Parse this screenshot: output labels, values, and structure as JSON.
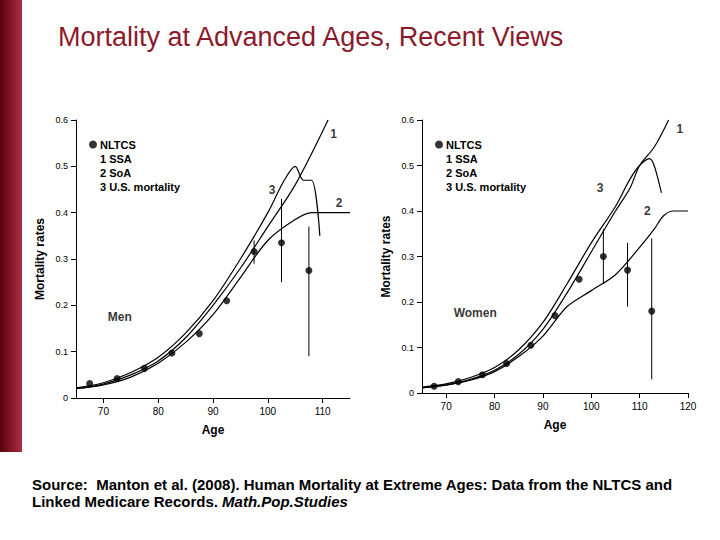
{
  "slide": {
    "title": "Mortality at Advanced Ages, Recent Views",
    "source": {
      "prefix": "Source:",
      "text": "Manton et al. (2008). Human Mortality at Extreme Ages: Data from the NLTCS and Linked Medicare Records.",
      "journal": "Math.Pop.Studies"
    }
  },
  "chart_data": [
    {
      "type": "line",
      "xlabel": "Age",
      "ylabel": "Mortality rates",
      "xlim": [
        65,
        115
      ],
      "xticks": [
        70,
        80,
        90,
        100,
        110
      ],
      "ylim": [
        0,
        0.6
      ],
      "yticks": [
        0,
        0.1,
        0.2,
        0.3,
        0.4,
        0.5,
        0.6
      ],
      "grid": false,
      "legend": "upper left",
      "series": [
        {
          "name": "NLTCS",
          "type": "scatter",
          "marker": "circle",
          "color": "#000000",
          "x": [
            67.5,
            72.5,
            77.5,
            82.5,
            87.5,
            92.5,
            97.5,
            102.5,
            107.5
          ],
          "values": [
            0.031,
            0.042,
            0.064,
            0.097,
            0.139,
            0.21,
            0.316,
            0.335,
            0.275
          ],
          "errors": [
            null,
            null,
            null,
            null,
            null,
            null,
            [
              0.29,
              0.34
            ],
            [
              0.25,
              0.43
            ],
            [
              0.09,
              0.37
            ]
          ]
        },
        {
          "name": "1 SSA",
          "type": "line",
          "color": "#000000",
          "x": [
            65,
            70,
            75,
            80,
            85,
            90,
            95,
            100,
            105,
            111
          ],
          "values": [
            0.02,
            0.03,
            0.05,
            0.08,
            0.13,
            0.2,
            0.28,
            0.37,
            0.46,
            0.6
          ]
        },
        {
          "name": "2 SoA",
          "type": "line",
          "color": "#000000",
          "x": [
            65,
            70,
            75,
            80,
            85,
            90,
            95,
            100,
            105,
            108,
            110,
            115
          ],
          "values": [
            0.02,
            0.028,
            0.045,
            0.075,
            0.12,
            0.18,
            0.26,
            0.34,
            0.385,
            0.4,
            0.4,
            0.4
          ]
        },
        {
          "name": "3 U.S. mortality",
          "type": "line",
          "color": "#000000",
          "x": [
            65,
            70,
            75,
            80,
            85,
            90,
            95,
            100,
            103,
            105,
            106.5,
            108,
            109.5
          ],
          "values": [
            0.022,
            0.033,
            0.055,
            0.088,
            0.14,
            0.21,
            0.3,
            0.4,
            0.47,
            0.5,
            0.47,
            0.47,
            0.35
          ]
        }
      ],
      "annotations": [
        {
          "text": "1",
          "x": 112,
          "y": 0.57
        },
        {
          "text": "2",
          "x": 113,
          "y": 0.42
        },
        {
          "text": "3",
          "x": 100.8,
          "y": 0.45
        },
        {
          "text": "Men",
          "x": 73,
          "y": 0.175
        }
      ]
    },
    {
      "type": "line",
      "xlabel": "Age",
      "ylabel": "Mortality rates",
      "xlim": [
        65,
        120
      ],
      "xticks": [
        70,
        80,
        90,
        100,
        110,
        120
      ],
      "ylim": [
        0,
        0.6
      ],
      "yticks": [
        0,
        0.1,
        0.2,
        0.3,
        0.4,
        0.5,
        0.6
      ],
      "grid": false,
      "legend": "upper left",
      "series": [
        {
          "name": "NLTCS",
          "type": "scatter",
          "marker": "circle",
          "color": "#000000",
          "x": [
            67.5,
            72.5,
            77.5,
            82.5,
            87.5,
            92.5,
            97.5,
            102.5,
            107.5,
            112.5
          ],
          "values": [
            0.015,
            0.025,
            0.04,
            0.065,
            0.105,
            0.17,
            0.25,
            0.3,
            0.27,
            0.18
          ],
          "errors": [
            null,
            null,
            null,
            null,
            null,
            null,
            null,
            [
              0.24,
              0.36
            ],
            [
              0.19,
              0.33
            ],
            [
              0.03,
              0.34
            ]
          ]
        },
        {
          "name": "1 SSA",
          "type": "line",
          "color": "#000000",
          "x": [
            65,
            70,
            75,
            80,
            85,
            90,
            95,
            100,
            105,
            108,
            110,
            113,
            116
          ],
          "values": [
            0.012,
            0.018,
            0.03,
            0.05,
            0.085,
            0.14,
            0.22,
            0.31,
            0.4,
            0.45,
            0.5,
            0.54,
            0.6
          ]
        },
        {
          "name": "2 SoA",
          "type": "line",
          "color": "#000000",
          "x": [
            65,
            70,
            75,
            80,
            85,
            90,
            95,
            100,
            105,
            110,
            113,
            115,
            117,
            120
          ],
          "values": [
            0.011,
            0.017,
            0.028,
            0.047,
            0.08,
            0.125,
            0.19,
            0.225,
            0.26,
            0.32,
            0.36,
            0.39,
            0.4,
            0.4
          ]
        },
        {
          "name": "3 U.S. mortality",
          "type": "line",
          "color": "#000000",
          "x": [
            65,
            70,
            75,
            80,
            85,
            90,
            95,
            100,
            105,
            108,
            110,
            112,
            113,
            114.5
          ],
          "values": [
            0.013,
            0.02,
            0.034,
            0.056,
            0.095,
            0.155,
            0.24,
            0.33,
            0.41,
            0.47,
            0.5,
            0.515,
            0.5,
            0.44
          ]
        }
      ],
      "annotations": [
        {
          "text": "1",
          "x": 118.3,
          "y": 0.58
        },
        {
          "text": "2",
          "x": 111.6,
          "y": 0.4
        },
        {
          "text": "3",
          "x": 101.8,
          "y": 0.45
        },
        {
          "text": "Women",
          "x": 76,
          "y": 0.175
        }
      ]
    }
  ]
}
